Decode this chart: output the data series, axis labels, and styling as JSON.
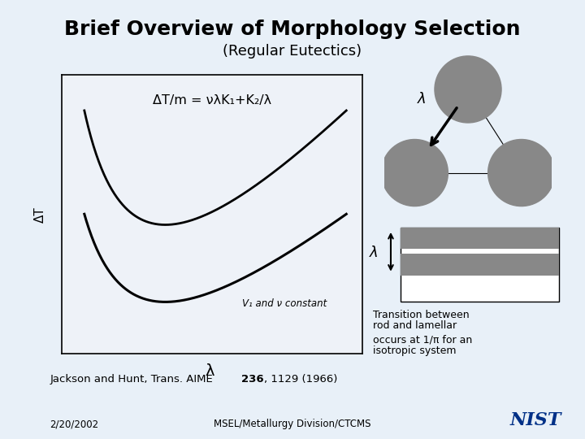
{
  "title": "Brief Overview of Morphology Selection",
  "subtitle": "(Regular Eutectics)",
  "bg_color": "#e8f0f8",
  "box_bg": "#eef2f8",
  "title_fontsize": 18,
  "subtitle_fontsize": 13,
  "equation": "ΔT/m = νλK₁+K₂/λ",
  "xlabel": "λ",
  "ylabel": "ΔT",
  "vf_label": "V₁ and ν constant",
  "transition_text1": "Transition between",
  "transition_text2": "rod and lamellar",
  "transition_text3": "occurs at 1/π for an",
  "transition_text4": "isotropic system",
  "ref_text": "Jackson and Hunt, Trans. AIME ",
  "ref_bold": "236",
  "ref_end": ", 1129 (1966)",
  "date_text": "2/20/2002",
  "footer_text": "MSEL/Metallurgy Division/CTCMS",
  "nist_color": "#003087",
  "gray_color": "#888888"
}
